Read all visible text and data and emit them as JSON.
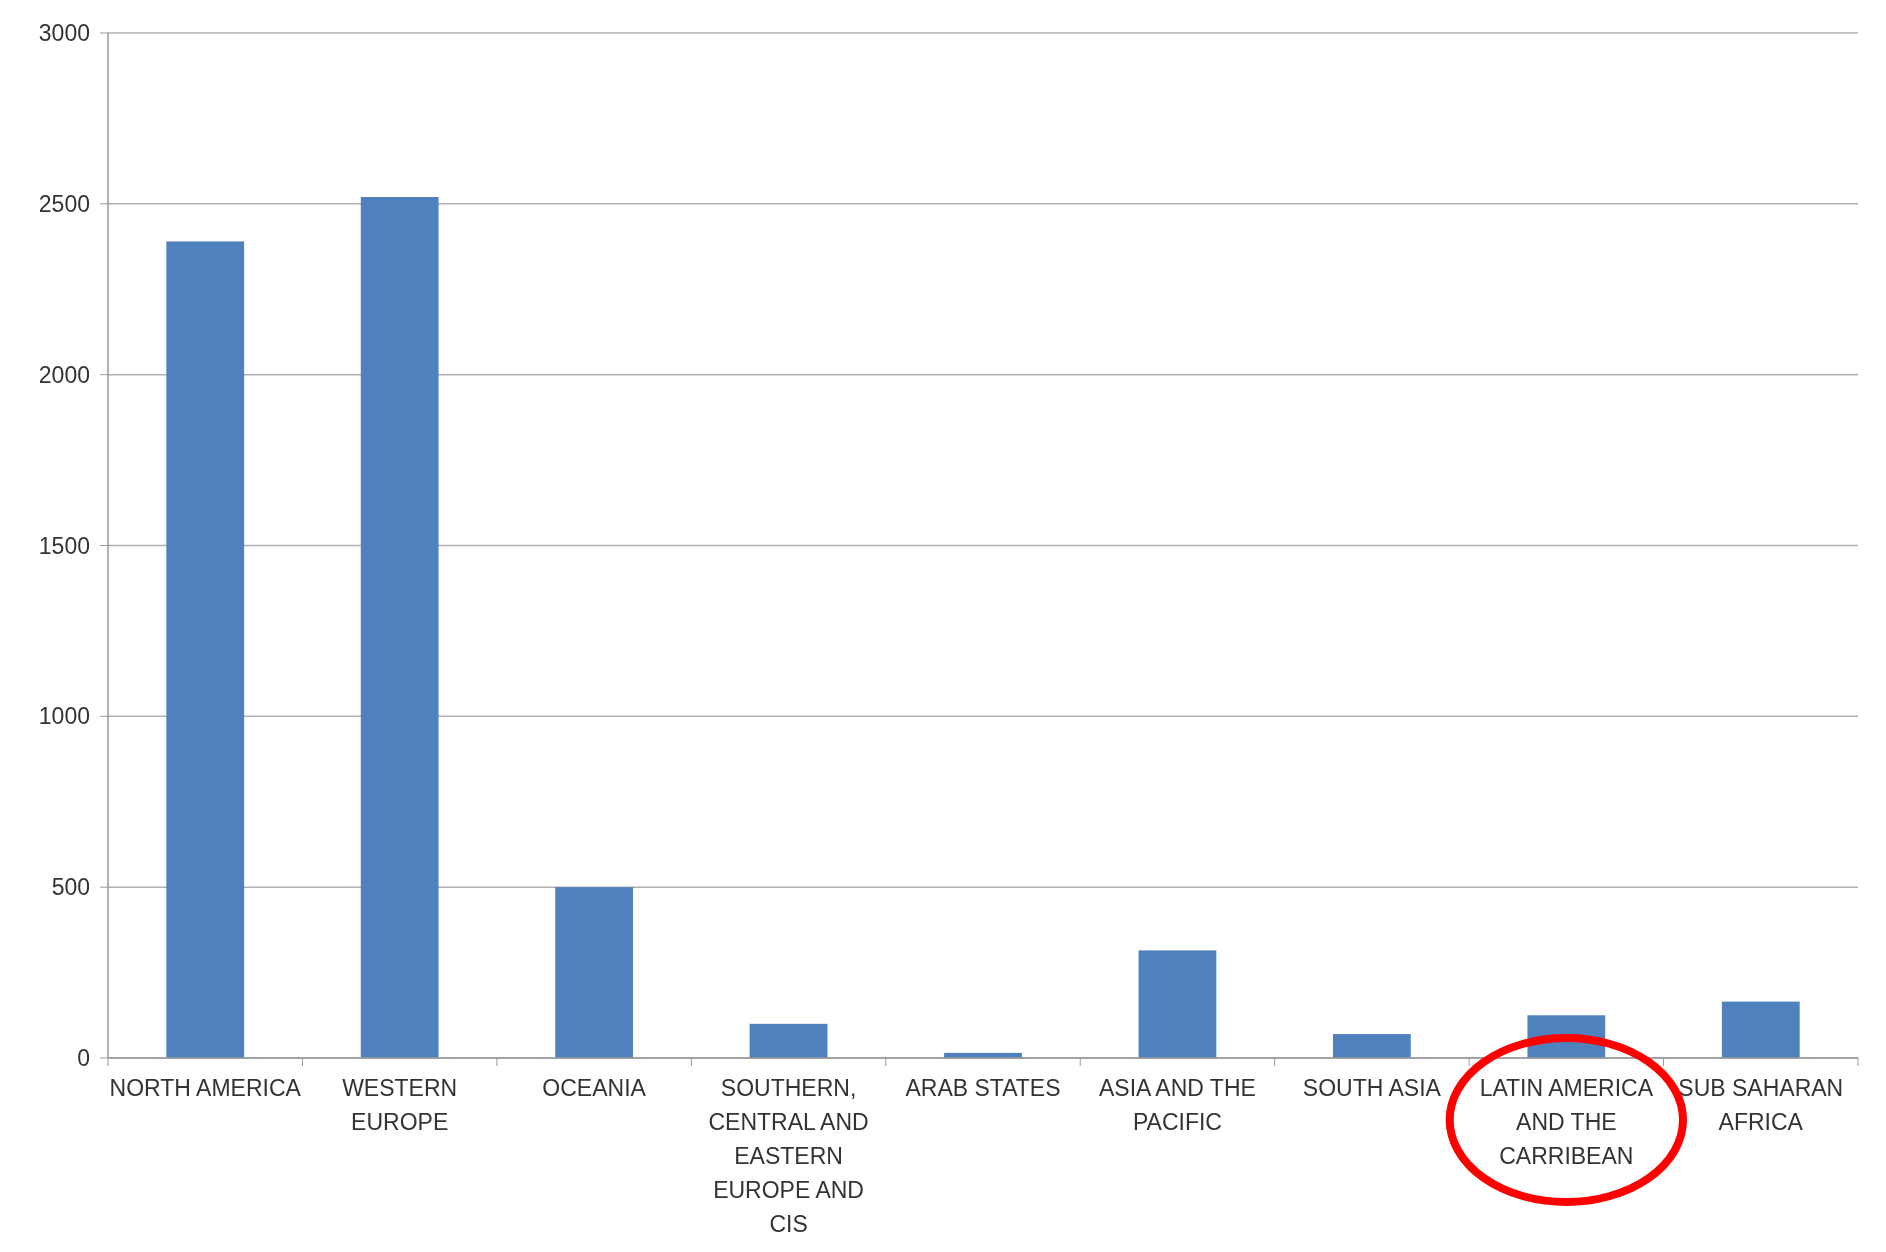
{
  "chart_data": {
    "type": "bar",
    "categories": [
      "NORTH AMERICA",
      "WESTERN EUROPE",
      "OCEANIA",
      "SOUTHERN, CENTRAL AND EASTERN EUROPE AND CIS",
      "ARAB STATES",
      "ASIA AND THE PACIFIC",
      "SOUTH ASIA",
      "LATIN AMERICA AND THE CARRIBEAN",
      "SUB SAHARAN AFRICA"
    ],
    "values": [
      2390,
      2520,
      500,
      100,
      15,
      315,
      70,
      125,
      165
    ],
    "color": "#4f81bd",
    "ylim": [
      0,
      3000
    ],
    "yticks": [
      0,
      500,
      1000,
      1500,
      2000,
      2500,
      3000
    ],
    "grid": "y"
  }
}
